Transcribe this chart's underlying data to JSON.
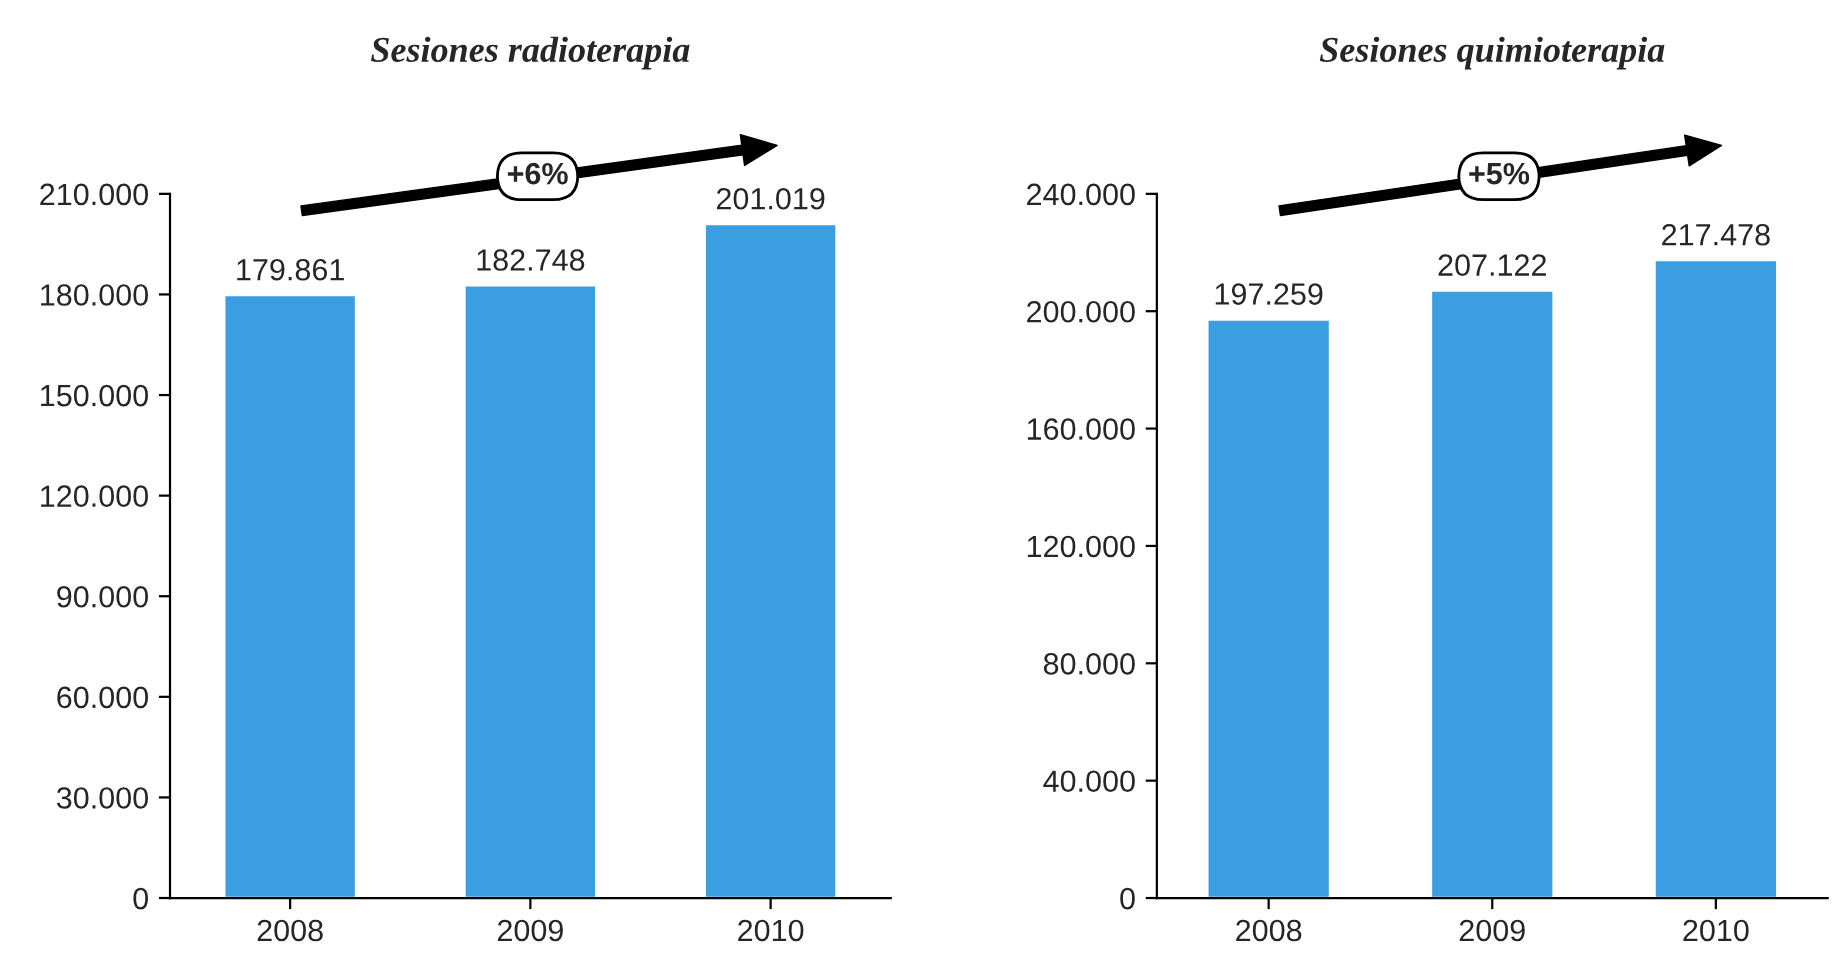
{
  "chart_data": [
    {
      "type": "bar",
      "title": "Sesiones radioterapia",
      "categories": [
        "2008",
        "2009",
        "2010"
      ],
      "values": [
        179861,
        182748,
        201019
      ],
      "value_labels": [
        "179.861",
        "182.748",
        "201.019"
      ],
      "color": "#3a9ee0",
      "ylim": [
        0,
        210000
      ],
      "yticks": [
        0,
        {
          "value": 30000,
          "label": "30.000"
        },
        {
          "value": 60000,
          "label": "60.000"
        },
        {
          "value": 90000,
          "label": "90.000"
        },
        {
          "value": 120000,
          "label": "120.000"
        },
        {
          "value": 150000,
          "label": "150.000"
        },
        {
          "value": 180000,
          "label": "180.000"
        },
        {
          "value": 210000,
          "label": "210.000"
        }
      ],
      "grid": false,
      "annotations": [
        "+6%"
      ]
    },
    {
      "type": "bar",
      "title": "Sesiones quimioterapia",
      "categories": [
        "2008",
        "2009",
        "2010"
      ],
      "values": [
        197259,
        207122,
        217478
      ],
      "value_labels": [
        "197.259",
        "207.122",
        "217.478"
      ],
      "color": "#3a9ee0",
      "ylim": [
        0,
        240000
      ],
      "yticks": [
        0,
        {
          "value": 40000,
          "label": "40.000"
        },
        {
          "value": 80000,
          "label": "80.000"
        },
        {
          "value": 120000,
          "label": "120.000"
        },
        {
          "value": 160000,
          "label": "160.000"
        },
        {
          "value": 200000,
          "label": "200.000"
        },
        {
          "value": 240000,
          "label": "240.000"
        }
      ],
      "grid": false,
      "annotations": [
        "+5%"
      ]
    }
  ]
}
